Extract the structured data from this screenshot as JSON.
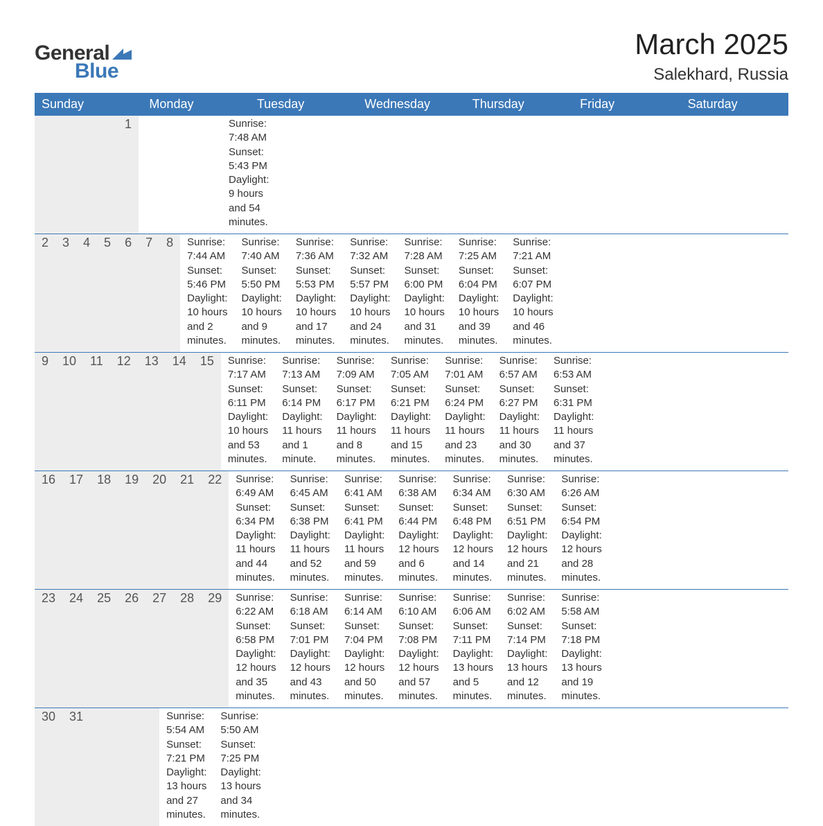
{
  "logo": {
    "text1": "General",
    "text2": "Blue",
    "color_general": "#333333",
    "color_blue": "#3b78b8"
  },
  "title": "March 2025",
  "location": "Salekhard, Russia",
  "header_bg": "#3b78b8",
  "header_fg": "#ffffff",
  "daynum_bg": "#ededed",
  "row_divider": "#3b78b8",
  "text_color": "#333333",
  "labels": {
    "sunrise": "Sunrise:",
    "sunset": "Sunset:",
    "daylight": "Daylight:"
  },
  "day_headers": [
    "Sunday",
    "Monday",
    "Tuesday",
    "Wednesday",
    "Thursday",
    "Friday",
    "Saturday"
  ],
  "weeks": [
    [
      {
        "num": "",
        "sunrise": "",
        "sunset": "",
        "daylight": ""
      },
      {
        "num": "",
        "sunrise": "",
        "sunset": "",
        "daylight": ""
      },
      {
        "num": "",
        "sunrise": "",
        "sunset": "",
        "daylight": ""
      },
      {
        "num": "",
        "sunrise": "",
        "sunset": "",
        "daylight": ""
      },
      {
        "num": "",
        "sunrise": "",
        "sunset": "",
        "daylight": ""
      },
      {
        "num": "",
        "sunrise": "",
        "sunset": "",
        "daylight": ""
      },
      {
        "num": "1",
        "sunrise": "7:48 AM",
        "sunset": "5:43 PM",
        "daylight": "9 hours and 54 minutes."
      }
    ],
    [
      {
        "num": "2",
        "sunrise": "7:44 AM",
        "sunset": "5:46 PM",
        "daylight": "10 hours and 2 minutes."
      },
      {
        "num": "3",
        "sunrise": "7:40 AM",
        "sunset": "5:50 PM",
        "daylight": "10 hours and 9 minutes."
      },
      {
        "num": "4",
        "sunrise": "7:36 AM",
        "sunset": "5:53 PM",
        "daylight": "10 hours and 17 minutes."
      },
      {
        "num": "5",
        "sunrise": "7:32 AM",
        "sunset": "5:57 PM",
        "daylight": "10 hours and 24 minutes."
      },
      {
        "num": "6",
        "sunrise": "7:28 AM",
        "sunset": "6:00 PM",
        "daylight": "10 hours and 31 minutes."
      },
      {
        "num": "7",
        "sunrise": "7:25 AM",
        "sunset": "6:04 PM",
        "daylight": "10 hours and 39 minutes."
      },
      {
        "num": "8",
        "sunrise": "7:21 AM",
        "sunset": "6:07 PM",
        "daylight": "10 hours and 46 minutes."
      }
    ],
    [
      {
        "num": "9",
        "sunrise": "7:17 AM",
        "sunset": "6:11 PM",
        "daylight": "10 hours and 53 minutes."
      },
      {
        "num": "10",
        "sunrise": "7:13 AM",
        "sunset": "6:14 PM",
        "daylight": "11 hours and 1 minute."
      },
      {
        "num": "11",
        "sunrise": "7:09 AM",
        "sunset": "6:17 PM",
        "daylight": "11 hours and 8 minutes."
      },
      {
        "num": "12",
        "sunrise": "7:05 AM",
        "sunset": "6:21 PM",
        "daylight": "11 hours and 15 minutes."
      },
      {
        "num": "13",
        "sunrise": "7:01 AM",
        "sunset": "6:24 PM",
        "daylight": "11 hours and 23 minutes."
      },
      {
        "num": "14",
        "sunrise": "6:57 AM",
        "sunset": "6:27 PM",
        "daylight": "11 hours and 30 minutes."
      },
      {
        "num": "15",
        "sunrise": "6:53 AM",
        "sunset": "6:31 PM",
        "daylight": "11 hours and 37 minutes."
      }
    ],
    [
      {
        "num": "16",
        "sunrise": "6:49 AM",
        "sunset": "6:34 PM",
        "daylight": "11 hours and 44 minutes."
      },
      {
        "num": "17",
        "sunrise": "6:45 AM",
        "sunset": "6:38 PM",
        "daylight": "11 hours and 52 minutes."
      },
      {
        "num": "18",
        "sunrise": "6:41 AM",
        "sunset": "6:41 PM",
        "daylight": "11 hours and 59 minutes."
      },
      {
        "num": "19",
        "sunrise": "6:38 AM",
        "sunset": "6:44 PM",
        "daylight": "12 hours and 6 minutes."
      },
      {
        "num": "20",
        "sunrise": "6:34 AM",
        "sunset": "6:48 PM",
        "daylight": "12 hours and 14 minutes."
      },
      {
        "num": "21",
        "sunrise": "6:30 AM",
        "sunset": "6:51 PM",
        "daylight": "12 hours and 21 minutes."
      },
      {
        "num": "22",
        "sunrise": "6:26 AM",
        "sunset": "6:54 PM",
        "daylight": "12 hours and 28 minutes."
      }
    ],
    [
      {
        "num": "23",
        "sunrise": "6:22 AM",
        "sunset": "6:58 PM",
        "daylight": "12 hours and 35 minutes."
      },
      {
        "num": "24",
        "sunrise": "6:18 AM",
        "sunset": "7:01 PM",
        "daylight": "12 hours and 43 minutes."
      },
      {
        "num": "25",
        "sunrise": "6:14 AM",
        "sunset": "7:04 PM",
        "daylight": "12 hours and 50 minutes."
      },
      {
        "num": "26",
        "sunrise": "6:10 AM",
        "sunset": "7:08 PM",
        "daylight": "12 hours and 57 minutes."
      },
      {
        "num": "27",
        "sunrise": "6:06 AM",
        "sunset": "7:11 PM",
        "daylight": "13 hours and 5 minutes."
      },
      {
        "num": "28",
        "sunrise": "6:02 AM",
        "sunset": "7:14 PM",
        "daylight": "13 hours and 12 minutes."
      },
      {
        "num": "29",
        "sunrise": "5:58 AM",
        "sunset": "7:18 PM",
        "daylight": "13 hours and 19 minutes."
      }
    ],
    [
      {
        "num": "30",
        "sunrise": "5:54 AM",
        "sunset": "7:21 PM",
        "daylight": "13 hours and 27 minutes."
      },
      {
        "num": "31",
        "sunrise": "5:50 AM",
        "sunset": "7:25 PM",
        "daylight": "13 hours and 34 minutes."
      },
      {
        "num": "",
        "sunrise": "",
        "sunset": "",
        "daylight": ""
      },
      {
        "num": "",
        "sunrise": "",
        "sunset": "",
        "daylight": ""
      },
      {
        "num": "",
        "sunrise": "",
        "sunset": "",
        "daylight": ""
      },
      {
        "num": "",
        "sunrise": "",
        "sunset": "",
        "daylight": ""
      },
      {
        "num": "",
        "sunrise": "",
        "sunset": "",
        "daylight": ""
      }
    ]
  ]
}
